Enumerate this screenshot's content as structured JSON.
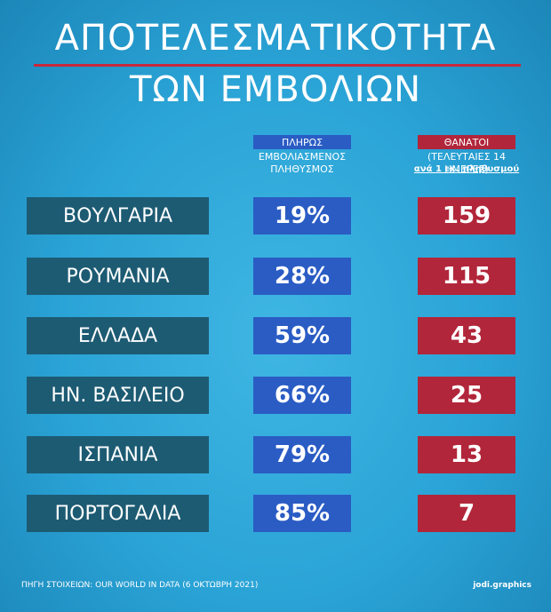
{
  "header": {
    "title_lines": [
      "ΑΠΟΤΕΛΕΣΜΑΤΙΚΟΤΗΤΑ",
      "ΤΩΝ ΕΜΒΟΛΙΩΝ"
    ]
  },
  "table": {
    "columns": [
      {
        "label": "ΠΛΗΡΩΣ",
        "sublines": [
          "ΕΜΒΟΛΙΑΣΜΕΝΟΣ",
          "ΠΛΗΘΥΣΜΟΣ"
        ]
      },
      {
        "label": "ΘΑΝΑΤΟΙ",
        "sublines": [
          "(ΤΕΛΕΥΤΑΙΕΣ 14 ΗΜΕΡΕΣ)",
          "ανά 1 εκ. πληθυσμού"
        ]
      }
    ],
    "rows": [
      [
        "ΒΟΥΛΓΑΡΙΑ",
        "19%",
        "159"
      ],
      [
        "ΡΟΥΜΑΝΙΑ",
        "28%",
        "115"
      ],
      [
        "ΕΛΛΑΔΑ",
        "59%",
        "43"
      ],
      [
        "ΗΝ. ΒΑΣΙΛΕΙΟ",
        "66%",
        "25"
      ],
      [
        "ΙΣΠΑΝΙΑ",
        "79%",
        "13"
      ],
      [
        "ΠΟΡΤΟΓΑΛΙΑ",
        "85%",
        "7"
      ]
    ]
  },
  "footer": {
    "source": "ΠΗΓΗ ΣΤΟΙΧΕΙΩΝ: OUR WORLD IN DATA (6 ΟΚΤΩΒΡΗ 2021)",
    "credit": "jodi.graphics"
  }
}
